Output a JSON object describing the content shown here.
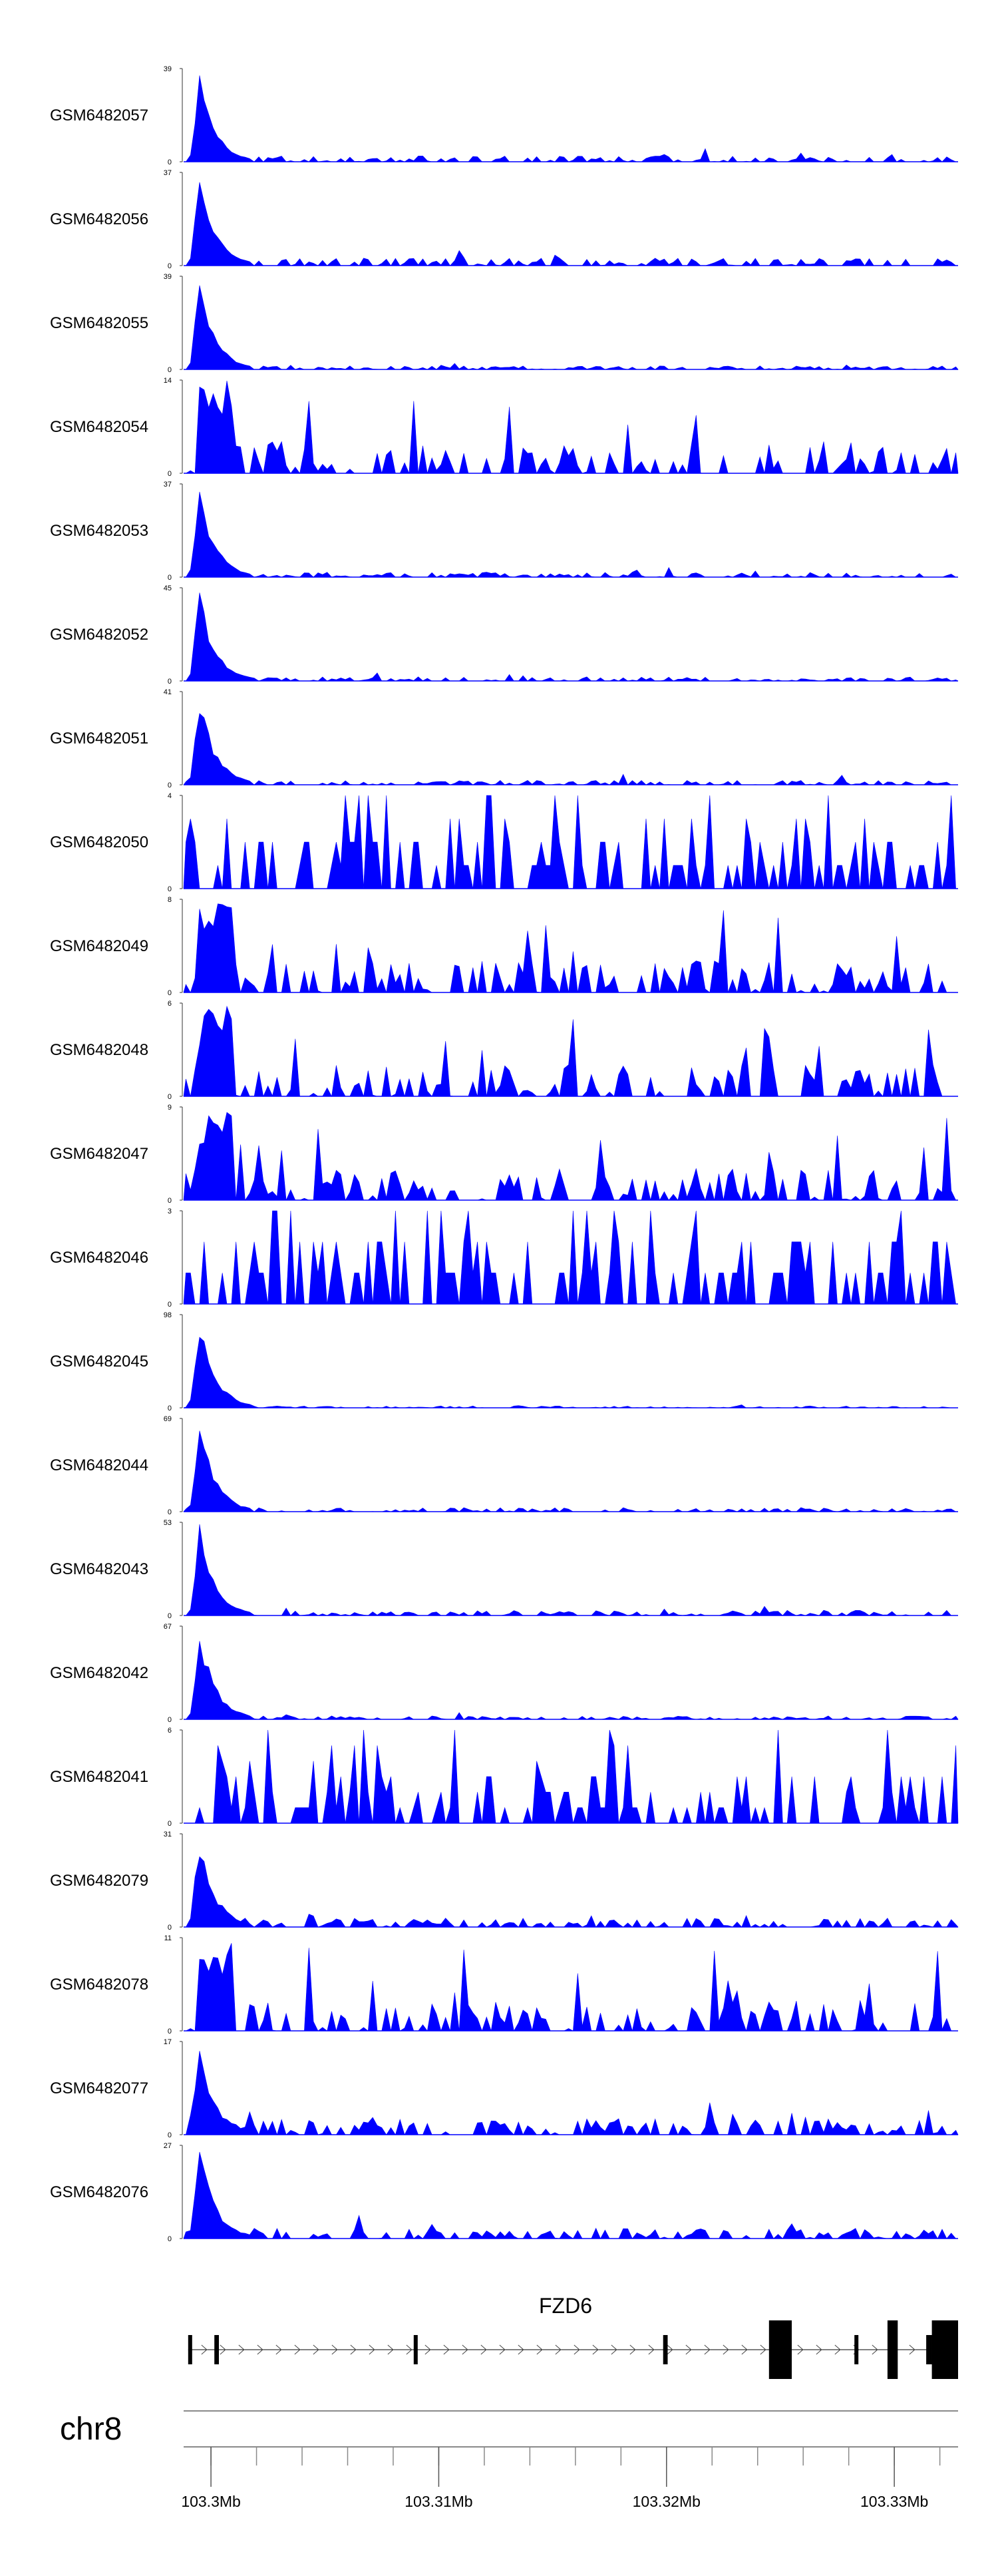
{
  "chart_data": {
    "type": "area",
    "title": "",
    "chromosome": "chr8",
    "region": {
      "start": 103298800,
      "end": 103332800,
      "unit": "bp"
    },
    "bin_size_bp": 200,
    "series_color": "#0000ff",
    "y_min_label": "0",
    "tracks": [
      {
        "name": "GSM6482057",
        "ymax": 39,
        "profile": "promoter",
        "background": 2.5
      },
      {
        "name": "GSM6482056",
        "ymax": 37,
        "profile": "promoter",
        "background": 3
      },
      {
        "name": "GSM6482055",
        "ymax": 39,
        "profile": "promoter",
        "background": 1.5
      },
      {
        "name": "GSM6482054",
        "ymax": 14,
        "profile": "sparse",
        "background": 3
      },
      {
        "name": "GSM6482053",
        "ymax": 37,
        "profile": "promoter",
        "background": 2
      },
      {
        "name": "GSM6482052",
        "ymax": 45,
        "profile": "promoter",
        "background": 2
      },
      {
        "name": "GSM6482051",
        "ymax": 41,
        "profile": "promoter",
        "background": 2
      },
      {
        "name": "GSM6482050",
        "ymax": 4,
        "profile": "noise",
        "background": 2
      },
      {
        "name": "GSM6482049",
        "ymax": 8,
        "profile": "sparse",
        "background": 2
      },
      {
        "name": "GSM6482048",
        "ymax": 6,
        "profile": "sparse",
        "background": 2.5
      },
      {
        "name": "GSM6482047",
        "ymax": 9,
        "profile": "sparse",
        "background": 2.5
      },
      {
        "name": "GSM6482046",
        "ymax": 3,
        "profile": "noise",
        "background": 1.5
      },
      {
        "name": "GSM6482045",
        "ymax": 98,
        "profile": "promoter",
        "background": 2
      },
      {
        "name": "GSM6482044",
        "ymax": 69,
        "profile": "promoter",
        "background": 3
      },
      {
        "name": "GSM6482043",
        "ymax": 53,
        "profile": "promoter",
        "background": 3
      },
      {
        "name": "GSM6482042",
        "ymax": 67,
        "profile": "promoter",
        "background": 2.5
      },
      {
        "name": "GSM6482041",
        "ymax": 6,
        "profile": "noise",
        "background": 2
      },
      {
        "name": "GSM6482079",
        "ymax": 31,
        "profile": "promoter",
        "background": 3
      },
      {
        "name": "GSM6482078",
        "ymax": 11,
        "profile": "sparse",
        "background": 3.5
      },
      {
        "name": "GSM6482077",
        "ymax": 17,
        "profile": "promoter",
        "background": 3
      },
      {
        "name": "GSM6482076",
        "ymax": 27,
        "profile": "promoter",
        "background": 3
      }
    ],
    "gene": {
      "name": "FZD6",
      "strand": "+",
      "start": 103299000,
      "end": 103332800,
      "exons": [
        {
          "start": 103299000,
          "end": 103299130
        },
        {
          "start": 103300150,
          "end": 103300350
        },
        {
          "start": 103308900,
          "end": 103308980
        },
        {
          "start": 103319850,
          "end": 103320050
        },
        {
          "start": 103324500,
          "end": 103325500
        },
        {
          "start": 103328250,
          "end": 103328400
        },
        {
          "start": 103329700,
          "end": 103330150
        },
        {
          "start": 103331400,
          "end": 103331650
        },
        {
          "start": 103331650,
          "end": 103332800
        }
      ],
      "utr_exons": [
        0,
        1,
        2,
        3,
        5,
        7
      ]
    },
    "x_axis": {
      "major_ticks": [
        {
          "value": 103300000,
          "label": "103.3Mb"
        },
        {
          "value": 103310000,
          "label": "103.31Mb"
        },
        {
          "value": 103320000,
          "label": "103.32Mb"
        },
        {
          "value": 103330000,
          "label": "103.33Mb"
        }
      ],
      "minor_tick_step": 2000
    }
  }
}
